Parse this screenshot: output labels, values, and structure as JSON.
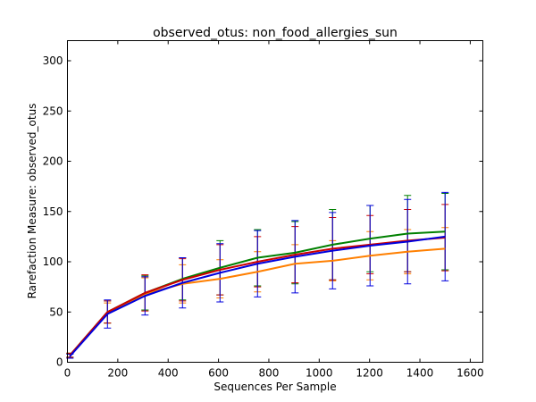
{
  "chart_data": {
    "type": "line",
    "title": "observed_otus: non_food_allergies_sun",
    "xlabel": "Sequences Per Sample",
    "ylabel": "Rarefaction Measure: observed_otus",
    "xlim": [
      0,
      1650
    ],
    "ylim": [
      0,
      320
    ],
    "xticks": [
      0,
      200,
      400,
      600,
      800,
      1000,
      1200,
      1400,
      1600
    ],
    "yticks": [
      0,
      50,
      100,
      150,
      200,
      250,
      300
    ],
    "grid": false,
    "x": [
      10,
      159,
      308,
      457,
      606,
      755,
      904,
      1053,
      1202,
      1351,
      1500
    ],
    "series": [
      {
        "color": "#ff7f00",
        "values": [
          7,
          49,
          68,
          78,
          83,
          90,
          98,
          101,
          106,
          110,
          113
        ],
        "err": [
          2,
          10,
          16,
          19,
          19,
          20,
          19,
          20,
          24,
          22,
          21
        ]
      },
      {
        "color": "#008000",
        "values": [
          7,
          50,
          69,
          83,
          94,
          104,
          109,
          117,
          123,
          128,
          130
        ],
        "err": [
          2,
          11,
          17,
          21,
          27,
          28,
          31,
          35,
          33,
          38,
          38
        ]
      },
      {
        "color": "#cc0000",
        "values": [
          7,
          50,
          69,
          82,
          92,
          100,
          107,
          113,
          117,
          121,
          124
        ],
        "err": [
          2,
          11,
          18,
          21,
          25,
          25,
          28,
          31,
          29,
          31,
          33
        ]
      },
      {
        "color": "#0000dd",
        "values": [
          6,
          48,
          66,
          79,
          89,
          98,
          105,
          111,
          116,
          120,
          125
        ],
        "err": [
          2,
          14,
          19,
          25,
          29,
          33,
          36,
          38,
          40,
          42,
          44
        ]
      }
    ]
  }
}
